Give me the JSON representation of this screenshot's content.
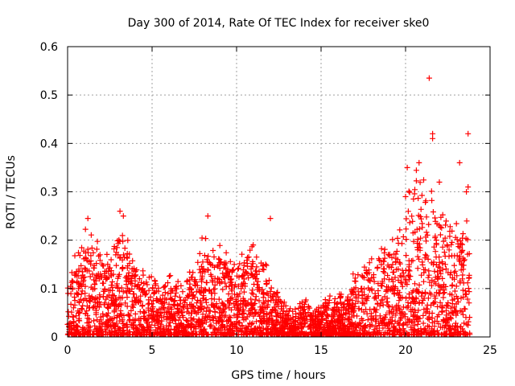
{
  "chart_data": {
    "type": "scatter",
    "title": "Day 300 of 2014, Rate Of TEC Index for receiver ske0",
    "xlabel": "GPS time / hours",
    "ylabel": "ROTI / TECUs",
    "xlim": [
      0,
      25
    ],
    "ylim": [
      0,
      0.6
    ],
    "x_ticks": [
      0,
      5,
      10,
      15,
      20,
      25
    ],
    "y_ticks": [
      0,
      0.1,
      0.2,
      0.3,
      0.4,
      0.5,
      0.6
    ],
    "x_tick_labels": [
      "0",
      "5",
      "10",
      "15",
      "20",
      "25"
    ],
    "y_tick_labels": [
      "0",
      "0.1",
      "0.2",
      "0.3",
      "0.4",
      "0.5",
      "0.6"
    ],
    "grid": true,
    "marker": "+",
    "color": "#ff0000",
    "envelope_hours": [
      0,
      0.5,
      1,
      1.5,
      2,
      2.5,
      3,
      3.5,
      4,
      4.5,
      5,
      5.5,
      6,
      6.5,
      7,
      7.5,
      8,
      8.5,
      9,
      9.5,
      10,
      10.5,
      11,
      11.5,
      12,
      12.5,
      13,
      13.5,
      14,
      14.5,
      15,
      15.5,
      16,
      16.5,
      17,
      17.5,
      18,
      18.5,
      19,
      19.5,
      20,
      20.5,
      21,
      21.5,
      22,
      22.5,
      23,
      23.5,
      23.8
    ],
    "envelope_roti": [
      0.1,
      0.17,
      0.22,
      0.18,
      0.18,
      0.16,
      0.22,
      0.2,
      0.16,
      0.14,
      0.13,
      0.09,
      0.12,
      0.11,
      0.1,
      0.14,
      0.2,
      0.18,
      0.17,
      0.16,
      0.15,
      0.17,
      0.18,
      0.15,
      0.12,
      0.08,
      0.06,
      0.05,
      0.08,
      0.05,
      0.06,
      0.08,
      0.08,
      0.08,
      0.13,
      0.14,
      0.15,
      0.17,
      0.18,
      0.21,
      0.24,
      0.3,
      0.33,
      0.28,
      0.26,
      0.25,
      0.24,
      0.22,
      0.22
    ],
    "outliers": [
      {
        "x": 21.4,
        "y": 0.535
      },
      {
        "x": 21.6,
        "y": 0.42
      },
      {
        "x": 23.7,
        "y": 0.42
      },
      {
        "x": 21.6,
        "y": 0.41
      },
      {
        "x": 23.2,
        "y": 0.36
      },
      {
        "x": 20.1,
        "y": 0.35
      },
      {
        "x": 20.8,
        "y": 0.36
      },
      {
        "x": 23.7,
        "y": 0.31
      },
      {
        "x": 23.6,
        "y": 0.3
      },
      {
        "x": 3.1,
        "y": 0.26
      },
      {
        "x": 3.3,
        "y": 0.25
      },
      {
        "x": 8.3,
        "y": 0.25
      },
      {
        "x": 12.0,
        "y": 0.245
      },
      {
        "x": 1.2,
        "y": 0.245
      },
      {
        "x": 20.0,
        "y": 0.29
      },
      {
        "x": 22.0,
        "y": 0.32
      }
    ],
    "point_count": 3200
  }
}
